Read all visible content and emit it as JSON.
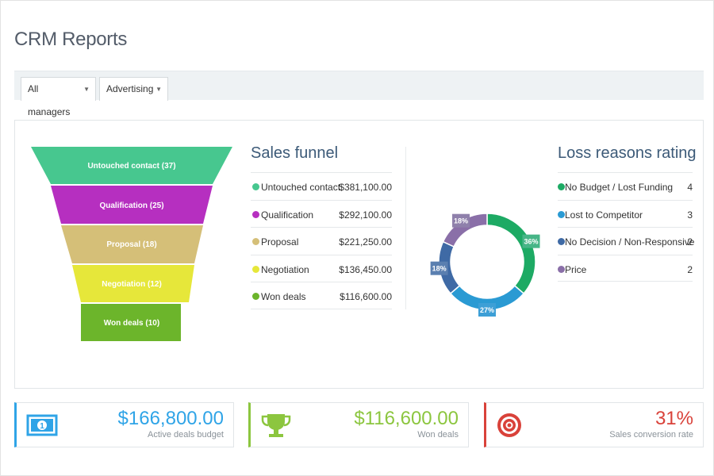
{
  "page": {
    "title": "CRM Reports"
  },
  "filters": [
    {
      "label": "All managers",
      "arrow": "▼"
    },
    {
      "label": "Advertising",
      "arrow": "▼"
    }
  ],
  "funnel": {
    "stages": [
      {
        "label": "Untouched contact (37)",
        "color": "#47c78f"
      },
      {
        "label": "Qualification (25)",
        "color": "#b62fc0"
      },
      {
        "label": "Proposal (18)",
        "color": "#d5bf78"
      },
      {
        "label": "Negotiation (12)",
        "color": "#e6e73a"
      },
      {
        "label": "Won deals (10)",
        "color": "#6cb52b"
      }
    ]
  },
  "sales_funnel": {
    "title": "Sales funnel",
    "rows": [
      {
        "label": "Untouched contact",
        "value": "$381,100.00",
        "color": "#47c78f"
      },
      {
        "label": "Qualification",
        "value": "$292,100.00",
        "color": "#b62fc0"
      },
      {
        "label": "Proposal",
        "value": "$221,250.00",
        "color": "#d5bf78"
      },
      {
        "label": "Negotiation",
        "value": "$136,450.00",
        "color": "#e6e73a"
      },
      {
        "label": "Won deals",
        "value": "$116,600.00",
        "color": "#6cb52b"
      }
    ]
  },
  "loss_reasons": {
    "title": "Loss reasons rating",
    "rows": [
      {
        "label": "No Budget / Lost Funding",
        "value": "4",
        "color": "#1daa64"
      },
      {
        "label": "Lost to Competitor",
        "value": "3",
        "color": "#2a9ad3"
      },
      {
        "label": "No Decision / Non-Responsive",
        "value": "2",
        "color": "#3f6aa5"
      },
      {
        "label": "Price",
        "value": "2",
        "color": "#8a6fa8"
      }
    ]
  },
  "chart_data": {
    "type": "pie",
    "title": "Loss reasons rating",
    "categories": [
      "No Budget / Lost Funding",
      "Lost to Competitor",
      "No Decision / Non-Responsive",
      "Price"
    ],
    "values": [
      4,
      3,
      2,
      2
    ],
    "labels": [
      "36%",
      "27%",
      "18%",
      "18%"
    ],
    "colors": [
      "#1daa64",
      "#2a9ad3",
      "#3f6aa5",
      "#8a6fa8"
    ],
    "label_colors": [
      "#47b587",
      "#3d9fd6",
      "#5a7fb0",
      "#8f80ab"
    ]
  },
  "kpis": [
    {
      "value": "$166,800.00",
      "label": "Active deals budget",
      "color": "#2fa4e7",
      "icon": "banknote-icon"
    },
    {
      "value": "$116,600.00",
      "label": "Won deals",
      "color": "#8cc63f",
      "icon": "trophy-icon"
    },
    {
      "value": "31%",
      "label": "Sales conversion rate",
      "color": "#d9423a",
      "icon": "target-icon"
    }
  ]
}
